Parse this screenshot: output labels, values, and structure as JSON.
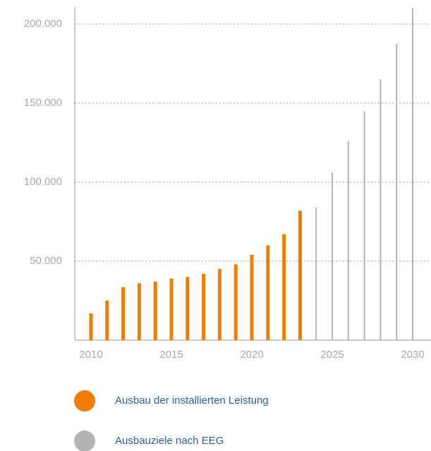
{
  "chart_data": {
    "type": "bar",
    "categories": [
      "2010",
      null,
      null,
      null,
      null,
      "2015",
      null,
      null,
      null,
      null,
      "2020",
      null,
      null,
      null,
      null,
      "2025",
      null,
      null,
      null,
      null,
      "2030"
    ],
    "series": [
      {
        "name": "Ausbau der installierten Leistung",
        "color": "#ef7d00",
        "values": [
          17000,
          25000,
          33500,
          36000,
          37000,
          39000,
          40000,
          42000,
          45000,
          48000,
          54000,
          60000,
          67000,
          82000,
          null,
          null,
          null,
          null,
          null,
          null,
          null
        ]
      },
      {
        "name": "Ausbauziele nach EEG",
        "color": "#b4b4b4",
        "values": [
          null,
          null,
          null,
          null,
          null,
          null,
          null,
          null,
          null,
          null,
          null,
          null,
          null,
          null,
          84000,
          106000,
          126000,
          145000,
          165000,
          187500,
          210000
        ]
      }
    ],
    "ylim": [
      0,
      210000
    ],
    "yticks": [
      {
        "value": 50000,
        "label": "50.000"
      },
      {
        "value": 100000,
        "label": "100.000"
      },
      {
        "value": 150000,
        "label": "150.000"
      },
      {
        "value": 200000,
        "label": "200.000"
      }
    ],
    "grid": true
  }
}
